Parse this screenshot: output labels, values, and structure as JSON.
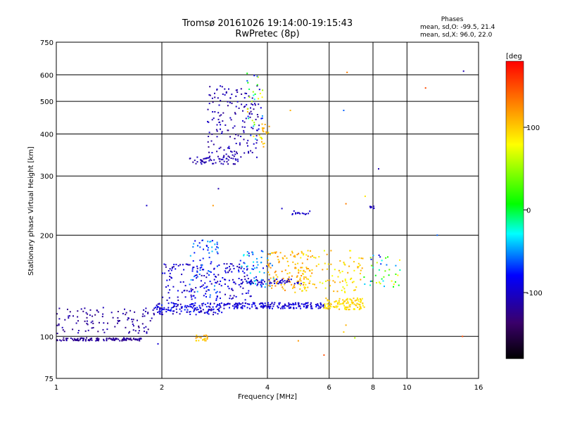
{
  "chart_data": {
    "type": "scatter",
    "title": "Tromsø 20161026 19:14:00-19:15:43",
    "subtitle": "RwPretec (8p)",
    "phase_stats": {
      "heading": "Phases",
      "line_o": "mean, sd,O: -99.5, 21.4",
      "line_x": "mean, sd,X:  96.0, 22.0"
    },
    "xlabel": "Frequency [MHz]",
    "ylabel": "Stationary phase Virtual Height [km]",
    "x_scale": "log",
    "y_scale": "log",
    "xlim": [
      1,
      16
    ],
    "ylim": [
      75,
      750
    ],
    "x_ticks": [
      1,
      2,
      4,
      6,
      8,
      10,
      16
    ],
    "x_tick_labels": [
      "1",
      "2",
      "4",
      "6",
      "8",
      "10",
      "16"
    ],
    "y_ticks": [
      75,
      100,
      200,
      300,
      400,
      500,
      600,
      750
    ],
    "y_tick_labels": [
      "75",
      "100",
      "200",
      "300",
      "400",
      "500",
      "600",
      "750"
    ],
    "grid": true,
    "colorbar": {
      "label": "[deg",
      "range": [
        -180,
        180
      ],
      "ticks": [
        -100,
        0,
        100
      ],
      "tick_labels": [
        "-100",
        "0",
        "100"
      ],
      "colors": [
        "#000000",
        "#3a006a",
        "#0000ff",
        "#00ffff",
        "#00ff00",
        "#ffff00",
        "#ff8800",
        "#ff0000"
      ]
    },
    "clusters": [
      {
        "f": [
          1.0,
          1.75
        ],
        "h": [
          97,
          99
        ],
        "phase": [
          -130,
          -110
        ],
        "n": 130
      },
      {
        "f": [
          1.0,
          1.9
        ],
        "h": [
          102,
          122
        ],
        "phase": [
          -130,
          -105
        ],
        "n": 110
      },
      {
        "f": [
          1.9,
          3.0
        ],
        "h": [
          116,
          126
        ],
        "phase": [
          -115,
          -70
        ],
        "n": 150
      },
      {
        "f": [
          3.0,
          5.8
        ],
        "h": [
          121,
          126
        ],
        "phase": [
          -110,
          -80
        ],
        "n": 180
      },
      {
        "f": [
          5.8,
          7.6
        ],
        "h": [
          120,
          130
        ],
        "phase": [
          80,
          110
        ],
        "n": 110
      },
      {
        "f": [
          2.0,
          3.6
        ],
        "h": [
          128,
          165
        ],
        "phase": [
          -120,
          -80
        ],
        "n": 170
      },
      {
        "f": [
          2.4,
          2.9
        ],
        "h": [
          130,
          195
        ],
        "phase": [
          -90,
          -40
        ],
        "n": 70
      },
      {
        "f": [
          3.3,
          4.2
        ],
        "h": [
          140,
          180
        ],
        "phase": [
          -90,
          -20
        ],
        "n": 60
      },
      {
        "f": [
          4.0,
          5.4
        ],
        "h": [
          135,
          180
        ],
        "phase": [
          90,
          130
        ],
        "n": 120
      },
      {
        "f": [
          4.8,
          7.5
        ],
        "h": [
          135,
          180
        ],
        "phase": [
          70,
          120
        ],
        "n": 100
      },
      {
        "f": [
          7.5,
          9.6
        ],
        "h": [
          140,
          175
        ],
        "phase": [
          -100,
          90
        ],
        "n": 40
      },
      {
        "f": [
          3.3,
          5.0
        ],
        "h": [
          143,
          148
        ],
        "phase": [
          -110,
          -90
        ],
        "n": 60
      },
      {
        "f": [
          2.5,
          2.7
        ],
        "h": [
          97,
          101
        ],
        "phase": [
          90,
          120
        ],
        "n": 20
      },
      {
        "f": [
          2.4,
          3.3
        ],
        "h": [
          325,
          345
        ],
        "phase": [
          -120,
          -100
        ],
        "n": 60
      },
      {
        "f": [
          2.7,
          3.8
        ],
        "h": [
          340,
          560
        ],
        "phase": [
          -125,
          -95
        ],
        "n": 160
      },
      {
        "f": [
          3.5,
          3.9
        ],
        "h": [
          380,
          620
        ],
        "phase": [
          -100,
          110
        ],
        "n": 40
      },
      {
        "f": [
          3.85,
          4.05
        ],
        "h": [
          360,
          430
        ],
        "phase": [
          90,
          120
        ],
        "n": 15
      },
      {
        "f": [
          4.7,
          5.3
        ],
        "h": [
          230,
          236
        ],
        "phase": [
          -110,
          -90
        ],
        "n": 15
      },
      {
        "f": [
          7.8,
          8.1
        ],
        "h": [
          240,
          244
        ],
        "phase": [
          -110,
          -100
        ],
        "n": 8
      }
    ],
    "points": [
      {
        "f": 1.81,
        "h": 245,
        "phase": -100
      },
      {
        "f": 4.65,
        "h": 470,
        "phase": 110
      },
      {
        "f": 6.6,
        "h": 470,
        "phase": -60
      },
      {
        "f": 6.75,
        "h": 610,
        "phase": 130
      },
      {
        "f": 11.3,
        "h": 548,
        "phase": 150
      },
      {
        "f": 14.5,
        "h": 615,
        "phase": -110
      },
      {
        "f": 8.3,
        "h": 315,
        "phase": -110
      },
      {
        "f": 12.2,
        "h": 200,
        "phase": -60
      },
      {
        "f": 5.8,
        "h": 88,
        "phase": 150
      },
      {
        "f": 6.7,
        "h": 248,
        "phase": 130
      },
      {
        "f": 7.6,
        "h": 261,
        "phase": 90
      },
      {
        "f": 4.4,
        "h": 240,
        "phase": -100
      },
      {
        "f": 6.7,
        "h": 108,
        "phase": 110
      },
      {
        "f": 1.95,
        "h": 95,
        "phase": -95
      },
      {
        "f": 14.4,
        "h": 100,
        "phase": 150
      },
      {
        "f": 7.1,
        "h": 99,
        "phase": 60
      },
      {
        "f": 4.9,
        "h": 97,
        "phase": 120
      },
      {
        "f": 6.6,
        "h": 103,
        "phase": 100
      },
      {
        "f": 2.9,
        "h": 275,
        "phase": -110
      },
      {
        "f": 2.8,
        "h": 245,
        "phase": 120
      }
    ]
  }
}
